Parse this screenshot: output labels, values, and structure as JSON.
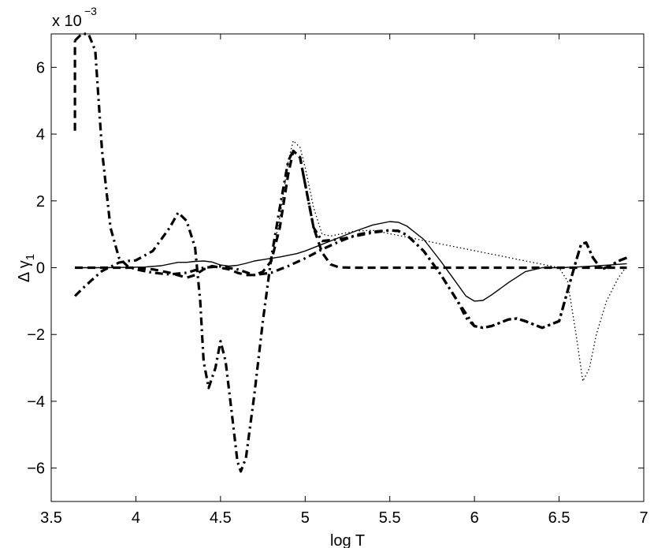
{
  "chart_data": {
    "type": "line",
    "title": "",
    "xlabel": "log T",
    "ylabel": "Δ γ",
    "ylabel_subscript": "1",
    "y_scale_base": "x 10",
    "y_scale_exponent": "−3",
    "xlim": [
      3.5,
      7
    ],
    "ylim": [
      -7,
      7
    ],
    "x_ticks": [
      {
        "value": 3.5,
        "label": "3.5"
      },
      {
        "value": 4,
        "label": "4"
      },
      {
        "value": 4.5,
        "label": "4.5"
      },
      {
        "value": 5,
        "label": "5"
      },
      {
        "value": 5.5,
        "label": "5.5"
      },
      {
        "value": 6,
        "label": "6"
      },
      {
        "value": 6.5,
        "label": "6.5"
      },
      {
        "value": 7,
        "label": "7"
      }
    ],
    "y_ticks": [
      {
        "value": -6,
        "label": "−6"
      },
      {
        "value": -4,
        "label": "−4"
      },
      {
        "value": -2,
        "label": "−2"
      },
      {
        "value": 0,
        "label": "0"
      },
      {
        "value": 2,
        "label": "2"
      },
      {
        "value": 4,
        "label": "4"
      },
      {
        "value": 6,
        "label": "6"
      }
    ],
    "grid": false,
    "legend": "none",
    "series": [
      {
        "style": "solid",
        "points": [
          [
            3.64,
            0
          ],
          [
            3.8,
            0
          ],
          [
            3.95,
            0.01
          ],
          [
            4.05,
            0.02
          ],
          [
            4.15,
            0.06
          ],
          [
            4.25,
            0.16
          ],
          [
            4.3,
            0.16
          ],
          [
            4.35,
            0.19
          ],
          [
            4.4,
            0.2
          ],
          [
            4.45,
            0.17
          ],
          [
            4.5,
            0.08
          ],
          [
            4.55,
            0.05
          ],
          [
            4.6,
            0.07
          ],
          [
            4.65,
            0.13
          ],
          [
            4.7,
            0.2
          ],
          [
            4.75,
            0.24
          ],
          [
            4.8,
            0.28
          ],
          [
            4.85,
            0.32
          ],
          [
            4.9,
            0.37
          ],
          [
            4.95,
            0.42
          ],
          [
            5.0,
            0.5
          ],
          [
            5.1,
            0.7
          ],
          [
            5.2,
            0.9
          ],
          [
            5.3,
            1.1
          ],
          [
            5.4,
            1.28
          ],
          [
            5.5,
            1.38
          ],
          [
            5.55,
            1.36
          ],
          [
            5.6,
            1.25
          ],
          [
            5.7,
            0.85
          ],
          [
            5.8,
            0.2
          ],
          [
            5.9,
            -0.5
          ],
          [
            5.95,
            -0.85
          ],
          [
            6.0,
            -1.0
          ],
          [
            6.05,
            -0.98
          ],
          [
            6.1,
            -0.82
          ],
          [
            6.2,
            -0.45
          ],
          [
            6.3,
            -0.12
          ],
          [
            6.4,
            0.0
          ],
          [
            6.5,
            0.0
          ],
          [
            6.6,
            0.02
          ],
          [
            6.7,
            0.05
          ],
          [
            6.8,
            0.08
          ],
          [
            6.9,
            0.12
          ]
        ]
      },
      {
        "style": "dashed",
        "points": [
          [
            3.64,
            0
          ],
          [
            3.8,
            0
          ],
          [
            3.9,
            0
          ],
          [
            4.0,
            0
          ],
          [
            4.1,
            -0.05
          ],
          [
            4.2,
            -0.15
          ],
          [
            4.3,
            -0.3
          ],
          [
            4.35,
            -0.22
          ],
          [
            4.4,
            -0.05
          ],
          [
            4.45,
            0.05
          ],
          [
            4.5,
            0.0
          ],
          [
            4.55,
            -0.05
          ],
          [
            4.6,
            -0.15
          ],
          [
            4.65,
            -0.22
          ],
          [
            4.7,
            -0.22
          ],
          [
            4.75,
            -0.12
          ],
          [
            4.8,
            0.2
          ],
          [
            4.85,
            1.2
          ],
          [
            4.9,
            2.8
          ],
          [
            4.93,
            3.5
          ],
          [
            4.97,
            3.3
          ],
          [
            5.0,
            2.5
          ],
          [
            5.05,
            1.2
          ],
          [
            5.1,
            0.45
          ],
          [
            5.15,
            0.1
          ],
          [
            5.2,
            0.01
          ],
          [
            5.3,
            0
          ],
          [
            5.6,
            0
          ],
          [
            6.0,
            0
          ],
          [
            6.5,
            0
          ],
          [
            6.9,
            0
          ]
        ]
      },
      {
        "style": "dashdot",
        "points": [
          [
            3.64,
            -0.85
          ],
          [
            3.7,
            -0.55
          ],
          [
            3.8,
            -0.1
          ],
          [
            3.9,
            0.15
          ],
          [
            3.95,
            0.2
          ],
          [
            4.0,
            0.22
          ],
          [
            4.1,
            0.5
          ],
          [
            4.2,
            1.2
          ],
          [
            4.25,
            1.65
          ],
          [
            4.3,
            1.4
          ],
          [
            4.35,
            0.6
          ],
          [
            4.38,
            -1.0
          ],
          [
            4.4,
            -2.8
          ],
          [
            4.43,
            -3.6
          ],
          [
            4.47,
            -3.0
          ],
          [
            4.5,
            -2.2
          ],
          [
            4.53,
            -2.8
          ],
          [
            4.57,
            -4.5
          ],
          [
            4.6,
            -5.8
          ],
          [
            4.62,
            -6.1
          ],
          [
            4.65,
            -5.7
          ],
          [
            4.7,
            -3.8
          ],
          [
            4.75,
            -1.6
          ],
          [
            4.8,
            0.3
          ],
          [
            4.85,
            1.8
          ],
          [
            4.9,
            3.2
          ],
          [
            4.93,
            3.5
          ],
          [
            4.97,
            3.3
          ],
          [
            5.0,
            2.5
          ],
          [
            5.05,
            1.2
          ],
          [
            5.1,
            0.8
          ],
          [
            5.2,
            0.85
          ],
          [
            5.3,
            0.95
          ],
          [
            5.4,
            1.05
          ],
          [
            5.5,
            1.12
          ],
          [
            5.55,
            1.1
          ],
          [
            5.6,
            0.98
          ],
          [
            5.7,
            0.5
          ],
          [
            5.8,
            -0.2
          ],
          [
            5.9,
            -1.0
          ],
          [
            5.95,
            -1.5
          ],
          [
            6.0,
            -1.75
          ],
          [
            6.05,
            -1.8
          ],
          [
            6.1,
            -1.75
          ],
          [
            6.2,
            -1.55
          ],
          [
            6.25,
            -1.52
          ],
          [
            6.3,
            -1.6
          ],
          [
            6.4,
            -1.8
          ],
          [
            6.5,
            -1.6
          ],
          [
            6.55,
            -0.7
          ],
          [
            6.6,
            0.2
          ],
          [
            6.63,
            0.7
          ],
          [
            6.66,
            0.75
          ],
          [
            6.7,
            0.3
          ],
          [
            6.75,
            -0.05
          ],
          [
            6.8,
            0.05
          ],
          [
            6.85,
            0.2
          ],
          [
            6.9,
            0.3
          ]
        ]
      },
      {
        "style": "dashdot",
        "points": [
          [
            3.64,
            6.8
          ],
          [
            3.68,
            7.2
          ],
          [
            3.72,
            7.3
          ],
          [
            3.76,
            6.5
          ],
          [
            3.8,
            3.5
          ],
          [
            3.85,
            1.2
          ],
          [
            3.9,
            0.3
          ],
          [
            3.95,
            0.05
          ],
          [
            4.0,
            -0.05
          ],
          [
            4.1,
            -0.15
          ],
          [
            4.2,
            -0.2
          ],
          [
            4.3,
            -0.15
          ],
          [
            4.4,
            0.0
          ],
          [
            4.5,
            0.04
          ],
          [
            4.6,
            -0.05
          ],
          [
            4.7,
            -0.22
          ],
          [
            4.8,
            -0.15
          ],
          [
            4.9,
            0.05
          ],
          [
            5.0,
            0.28
          ],
          [
            5.1,
            0.55
          ],
          [
            5.2,
            0.78
          ],
          [
            5.3,
            0.98
          ],
          [
            5.4,
            1.08
          ],
          [
            5.5,
            1.12
          ],
          [
            5.55,
            1.1
          ],
          [
            5.6,
            0.98
          ],
          [
            5.7,
            0.5
          ],
          [
            5.8,
            -0.2
          ],
          [
            5.9,
            -1.0
          ],
          [
            6.0,
            -1.75
          ],
          [
            6.05,
            -1.8
          ],
          [
            6.1,
            -1.75
          ],
          [
            6.2,
            -1.55
          ],
          [
            6.25,
            -1.52
          ],
          [
            6.3,
            -1.6
          ],
          [
            6.4,
            -1.8
          ],
          [
            6.5,
            -1.6
          ],
          [
            6.55,
            -0.7
          ],
          [
            6.6,
            0.2
          ],
          [
            6.63,
            0.7
          ],
          [
            6.66,
            0.75
          ],
          [
            6.7,
            0.3
          ],
          [
            6.75,
            -0.05
          ],
          [
            6.8,
            0.05
          ],
          [
            6.85,
            0.2
          ],
          [
            6.9,
            0.3
          ]
        ]
      },
      {
        "style": "dashed",
        "points": [
          [
            3.64,
            4.1
          ],
          [
            3.64,
            6.8
          ]
        ]
      },
      {
        "style": "dotted",
        "points": [
          [
            4.8,
            0.2
          ],
          [
            4.85,
            1.5
          ],
          [
            4.9,
            3.2
          ],
          [
            4.93,
            3.8
          ],
          [
            4.97,
            3.6
          ],
          [
            5.0,
            3.0
          ],
          [
            5.05,
            1.8
          ],
          [
            5.1,
            1.0
          ],
          [
            5.15,
            0.95
          ],
          [
            5.2,
            1.0
          ],
          [
            5.3,
            1.1
          ],
          [
            5.4,
            1.12
          ],
          [
            6.5,
            0.0
          ],
          [
            6.55,
            -0.4
          ],
          [
            6.6,
            -2.0
          ],
          [
            6.64,
            -3.4
          ],
          [
            6.68,
            -3.0
          ],
          [
            6.72,
            -2.0
          ],
          [
            6.78,
            -1.0
          ],
          [
            6.85,
            -0.3
          ],
          [
            6.9,
            0.05
          ]
        ]
      }
    ]
  }
}
